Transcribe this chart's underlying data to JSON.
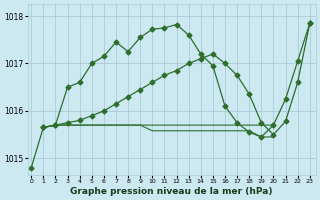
{
  "xlabel": "Graphe pression niveau de la mer (hPa)",
  "bg_color": "#cce8f0",
  "grid_color": "#aaccd8",
  "line_color": "#2d6e2d",
  "ylim": [
    1014.65,
    1018.25
  ],
  "xlim": [
    -0.3,
    23.5
  ],
  "yticks": [
    1015,
    1016,
    1017,
    1018
  ],
  "xticks": [
    0,
    1,
    2,
    3,
    4,
    5,
    6,
    7,
    8,
    9,
    10,
    11,
    12,
    13,
    14,
    15,
    16,
    17,
    18,
    19,
    20,
    21,
    22,
    23
  ],
  "line1_x": [
    0,
    1,
    2,
    3,
    4,
    5,
    6,
    7,
    8,
    9,
    10,
    11,
    12,
    13,
    14,
    15,
    16,
    17,
    18,
    19,
    20,
    21,
    22,
    23
  ],
  "line1_y": [
    1014.8,
    1015.65,
    1015.7,
    1016.5,
    1016.6,
    1017.0,
    1017.15,
    1017.45,
    1017.25,
    1017.55,
    1017.72,
    1017.75,
    1017.82,
    1017.6,
    1017.2,
    1016.95,
    1016.1,
    1015.75,
    1015.55,
    1015.45,
    1015.7,
    1016.25,
    1017.05,
    1017.85
  ],
  "line2_x": [
    1,
    2,
    3,
    4,
    5,
    6,
    7,
    8,
    9,
    10,
    11,
    12,
    13,
    14,
    15,
    16,
    17,
    18,
    19,
    20,
    21,
    22,
    23
  ],
  "line2_y": [
    1015.65,
    1015.7,
    1015.75,
    1015.8,
    1015.9,
    1016.0,
    1016.15,
    1016.3,
    1016.45,
    1016.6,
    1016.75,
    1016.85,
    1017.0,
    1017.1,
    1017.2,
    1017.0,
    1016.75,
    1016.35,
    1015.75,
    1015.5,
    1015.78,
    1016.6,
    1017.85
  ],
  "line3_x": [
    1,
    2,
    3,
    4,
    5,
    6,
    7,
    8,
    9,
    10,
    11,
    12,
    13,
    14,
    15,
    16,
    17,
    18,
    19,
    20
  ],
  "line3_y": [
    1015.65,
    1015.7,
    1015.7,
    1015.7,
    1015.7,
    1015.7,
    1015.7,
    1015.7,
    1015.7,
    1015.7,
    1015.7,
    1015.7,
    1015.7,
    1015.7,
    1015.7,
    1015.7,
    1015.7,
    1015.7,
    1015.7,
    1015.7
  ],
  "line4_x": [
    1,
    2,
    3,
    4,
    5,
    6,
    7,
    8,
    9,
    10,
    11,
    12,
    13,
    14,
    15,
    16,
    17,
    18,
    19,
    20
  ],
  "line4_y": [
    1015.65,
    1015.7,
    1015.7,
    1015.7,
    1015.7,
    1015.7,
    1015.7,
    1015.7,
    1015.7,
    1015.58,
    1015.58,
    1015.58,
    1015.58,
    1015.58,
    1015.58,
    1015.58,
    1015.58,
    1015.58,
    1015.45,
    1015.45
  ]
}
